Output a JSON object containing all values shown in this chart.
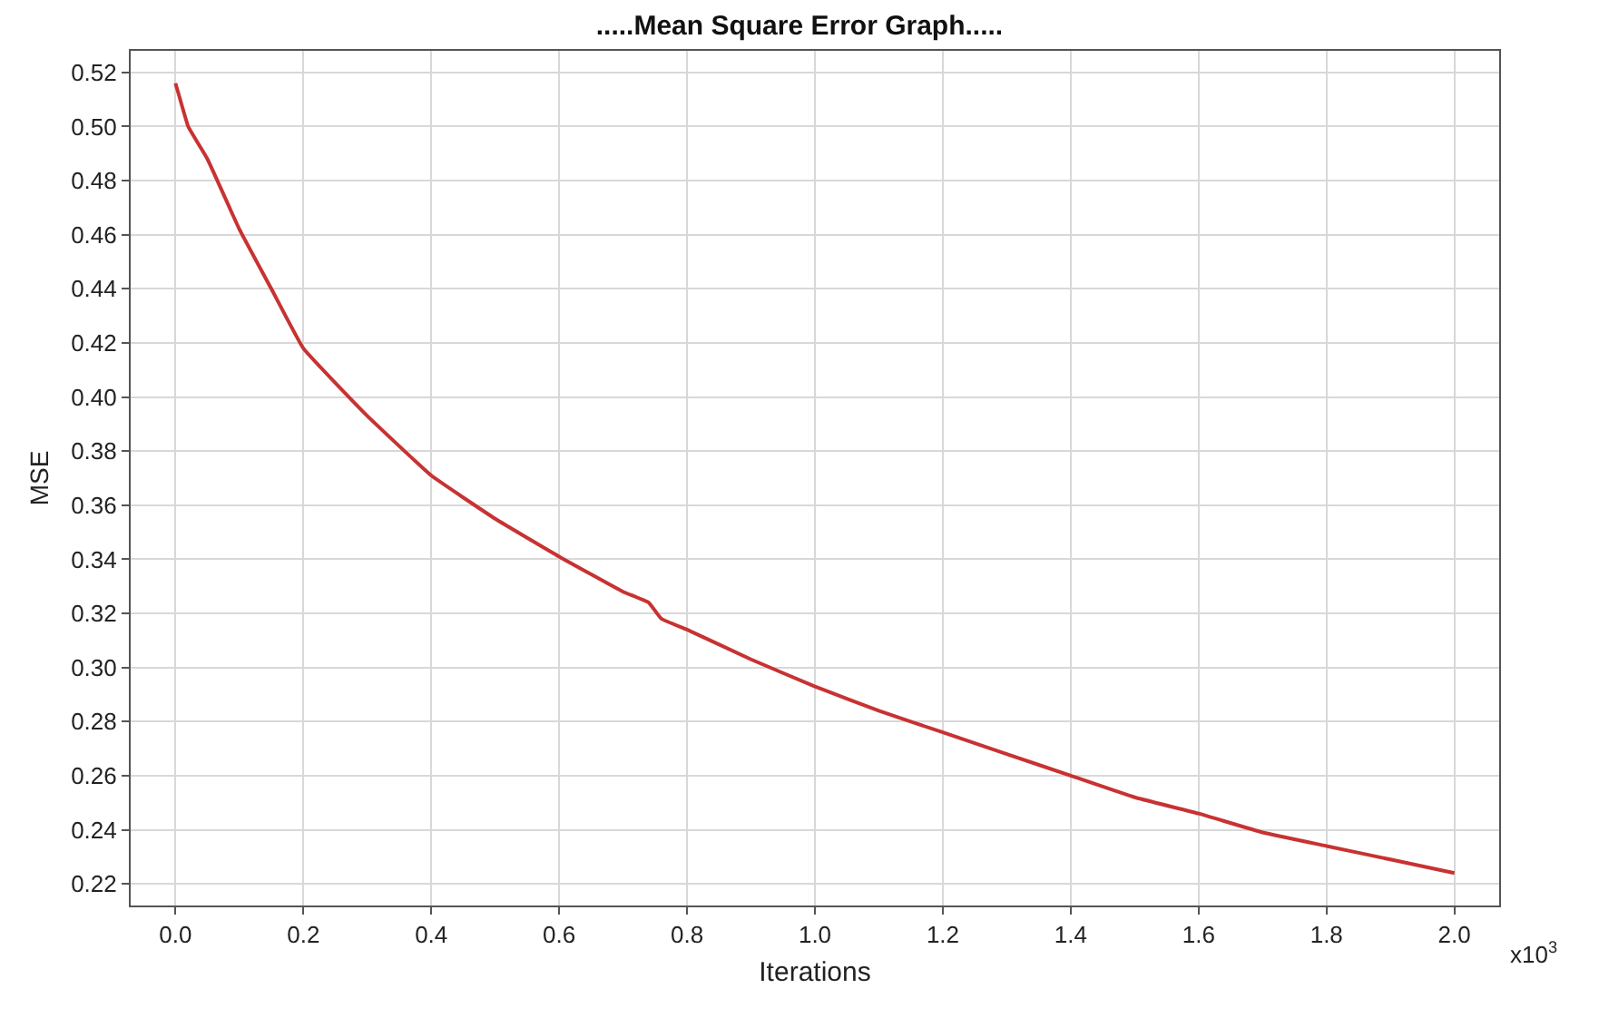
{
  "chart_data": {
    "type": "line",
    "title": ".....Mean Square Error Graph.....",
    "xlabel": "Iterations",
    "ylabel": "MSE",
    "annotations": [
      "x10$^{3}$"
    ],
    "x": [
      0,
      0.005,
      0.02,
      0.05,
      0.1,
      0.15,
      0.2,
      0.3,
      0.4,
      0.5,
      0.6,
      0.7,
      0.74,
      0.76,
      0.8,
      0.9,
      1.0,
      1.1,
      1.2,
      1.3,
      1.4,
      1.5,
      1.6,
      1.7,
      1.8,
      1.9,
      2.0
    ],
    "series": [
      {
        "color": "#c83232",
        "values": [
          0.516,
          0.512,
          0.5,
          0.488,
          0.462,
          0.44,
          0.418,
          0.393,
          0.371,
          0.355,
          0.341,
          0.328,
          0.324,
          0.318,
          0.314,
          0.303,
          0.293,
          0.284,
          0.276,
          0.268,
          0.26,
          0.252,
          0.246,
          0.239,
          0.234,
          0.229,
          0.224
        ]
      }
    ],
    "xlim": [
      -0.07,
      2.07
    ],
    "xticks": [
      {
        "value": 0,
        "label": "0.0"
      },
      0.2,
      0.4,
      0.6,
      0.8,
      {
        "value": 1,
        "label": "1.0"
      },
      1.2,
      1.4,
      1.6,
      1.8,
      {
        "value": 2,
        "label": "2.0"
      }
    ],
    "ylim": [
      0.212,
      0.528
    ],
    "yticks": [
      0.22,
      0.24,
      0.26,
      0.28,
      {
        "value": 0.3,
        "label": "0.30"
      },
      0.32,
      0.34,
      0.36,
      0.38,
      {
        "value": 0.4,
        "label": "0.40"
      },
      0.42,
      0.44,
      0.46,
      0.48,
      {
        "value": 0.5,
        "label": "0.50"
      },
      0.52
    ],
    "grid": true,
    "marker": "none",
    "line_style": "solid"
  }
}
